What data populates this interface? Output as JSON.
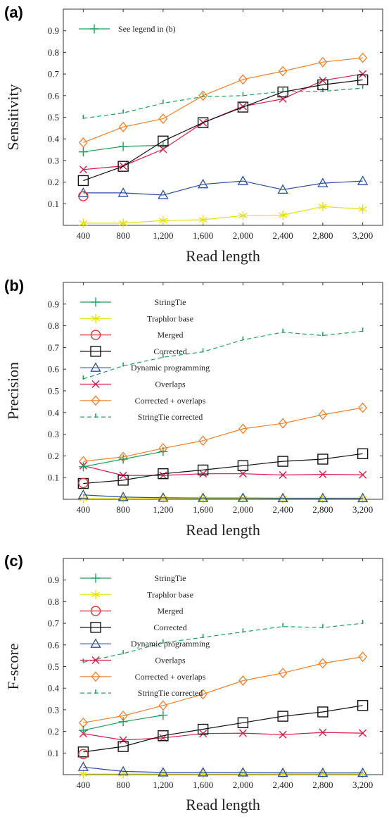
{
  "chart_data": [
    {
      "type": "line",
      "panel": "(a)",
      "xlabel": "Read length",
      "ylabel": "Sensitivity",
      "xlim": [
        200,
        3400
      ],
      "ylim": [
        0,
        1.0
      ],
      "x_ticks": [
        "400",
        "800",
        "1,200",
        "1,600",
        "2,000",
        "2,400",
        "2,800",
        "3,200"
      ],
      "y_ticks": [
        "0.1",
        "0.2",
        "0.3",
        "0.4",
        "0.5",
        "0.6",
        "0.7",
        "0.8",
        "0.9"
      ],
      "legend": [
        {
          "key": "stringtie",
          "label": "See legend in (b)"
        }
      ],
      "series": [
        {
          "key": "stringtie",
          "x": [
            400,
            800,
            1200
          ],
          "y": [
            0.34,
            0.365,
            0.37
          ]
        },
        {
          "key": "traphlor",
          "x": [
            400,
            800,
            1200,
            1600,
            2000,
            2400,
            2800,
            3200
          ],
          "y": [
            0.01,
            0.01,
            0.022,
            0.026,
            0.045,
            0.047,
            0.087,
            0.075
          ]
        },
        {
          "key": "merged",
          "x": [
            400
          ],
          "y": [
            0.135
          ]
        },
        {
          "key": "corrected",
          "x": [
            400,
            800,
            1200,
            1600,
            2000,
            2400,
            2800,
            3200
          ],
          "y": [
            0.207,
            0.273,
            0.39,
            0.475,
            0.547,
            0.617,
            0.65,
            0.673
          ]
        },
        {
          "key": "dynamic",
          "x": [
            400,
            800,
            1200,
            1600,
            2000,
            2400,
            2800,
            3200
          ],
          "y": [
            0.15,
            0.15,
            0.14,
            0.19,
            0.205,
            0.165,
            0.195,
            0.205
          ]
        },
        {
          "key": "overlaps",
          "x": [
            400,
            800,
            1200,
            1600,
            2000,
            2400,
            2800,
            3200
          ],
          "y": [
            0.258,
            0.275,
            0.352,
            0.475,
            0.55,
            0.585,
            0.67,
            0.7
          ]
        },
        {
          "key": "corr_overlaps",
          "x": [
            400,
            800,
            1200,
            1600,
            2000,
            2400,
            2800,
            3200
          ],
          "y": [
            0.383,
            0.455,
            0.493,
            0.6,
            0.675,
            0.713,
            0.755,
            0.775
          ]
        },
        {
          "key": "st_corrected",
          "x": [
            400,
            800,
            1200,
            1600,
            2000,
            2400,
            2800,
            3200
          ],
          "y": [
            0.495,
            0.52,
            0.565,
            0.595,
            0.6,
            0.62,
            0.62,
            0.635
          ]
        }
      ]
    },
    {
      "type": "line",
      "panel": "(b)",
      "xlabel": "Read length",
      "ylabel": "Precision",
      "xlim": [
        200,
        3400
      ],
      "ylim": [
        0,
        1.0
      ],
      "x_ticks": [
        "400",
        "800",
        "1,200",
        "1,600",
        "2,000",
        "2,400",
        "2,800",
        "3,200"
      ],
      "y_ticks": [
        "0.1",
        "0.2",
        "0.3",
        "0.4",
        "0.5",
        "0.6",
        "0.7",
        "0.8",
        "0.9"
      ],
      "legend": [
        {
          "key": "stringtie",
          "label": "StringTie"
        },
        {
          "key": "traphlor",
          "label": "Traphlor base"
        },
        {
          "key": "merged",
          "label": "Merged"
        },
        {
          "key": "corrected",
          "label": "Corrected"
        },
        {
          "key": "dynamic",
          "label": "Dynamic programming"
        },
        {
          "key": "overlaps",
          "label": "Overlaps"
        },
        {
          "key": "corr_overlaps",
          "label": "Corrected + overlaps"
        },
        {
          "key": "st_corrected",
          "label": "StringTie corrected"
        }
      ],
      "series": [
        {
          "key": "stringtie",
          "x": [
            400,
            800,
            1200
          ],
          "y": [
            0.15,
            0.185,
            0.22
          ]
        },
        {
          "key": "traphlor",
          "x": [
            400,
            800,
            1200,
            1600,
            2000,
            2400,
            2800,
            3200
          ],
          "y": [
            0.003,
            0.003,
            0.003,
            0.003,
            0.003,
            0.003,
            0.003,
            0.003
          ]
        },
        {
          "key": "merged",
          "x": [
            400
          ],
          "y": [
            0.075
          ]
        },
        {
          "key": "corrected",
          "x": [
            400,
            800,
            1200,
            1600,
            2000,
            2400,
            2800,
            3200
          ],
          "y": [
            0.073,
            0.088,
            0.118,
            0.135,
            0.155,
            0.175,
            0.185,
            0.21
          ]
        },
        {
          "key": "dynamic",
          "x": [
            400,
            800,
            1200,
            1600,
            2000,
            2400,
            2800,
            3200
          ],
          "y": [
            0.02,
            0.01,
            0.007,
            0.006,
            0.006,
            0.005,
            0.005,
            0.005
          ]
        },
        {
          "key": "overlaps",
          "x": [
            400,
            800,
            1200,
            1600,
            2000,
            2400,
            2800,
            3200
          ],
          "y": [
            0.155,
            0.11,
            0.11,
            0.118,
            0.118,
            0.112,
            0.115,
            0.113
          ]
        },
        {
          "key": "corr_overlaps",
          "x": [
            400,
            800,
            1200,
            1600,
            2000,
            2400,
            2800,
            3200
          ],
          "y": [
            0.175,
            0.195,
            0.235,
            0.27,
            0.325,
            0.35,
            0.39,
            0.422
          ]
        },
        {
          "key": "st_corrected",
          "x": [
            400,
            800,
            1200,
            1600,
            2000,
            2400,
            2800,
            3200
          ],
          "y": [
            0.555,
            0.615,
            0.655,
            0.68,
            0.735,
            0.77,
            0.755,
            0.775
          ]
        }
      ]
    },
    {
      "type": "line",
      "panel": "(c)",
      "xlabel": "Read length",
      "ylabel": "F-score",
      "xlim": [
        200,
        3400
      ],
      "ylim": [
        0,
        1.0
      ],
      "x_ticks": [
        "400",
        "800",
        "1,200",
        "1,600",
        "2,000",
        "2,400",
        "2,800",
        "3,200"
      ],
      "y_ticks": [
        "0.1",
        "0.2",
        "0.3",
        "0.4",
        "0.5",
        "0.6",
        "0.7",
        "0.8",
        "0.9"
      ],
      "legend": [
        {
          "key": "stringtie",
          "label": "StringTie"
        },
        {
          "key": "traphlor",
          "label": "Traphlor base"
        },
        {
          "key": "merged",
          "label": "Merged"
        },
        {
          "key": "corrected",
          "label": "Corrected"
        },
        {
          "key": "dynamic",
          "label": "Dynamic programming"
        },
        {
          "key": "overlaps",
          "label": "Overlaps"
        },
        {
          "key": "corr_overlaps",
          "label": "Corrected + overlaps"
        },
        {
          "key": "st_corrected",
          "label": "StringTie corrected"
        }
      ],
      "series": [
        {
          "key": "stringtie",
          "x": [
            400,
            800,
            1200
          ],
          "y": [
            0.205,
            0.245,
            0.275
          ]
        },
        {
          "key": "traphlor",
          "x": [
            400,
            800,
            1200,
            1600,
            2000,
            2400,
            2800,
            3200
          ],
          "y": [
            0.003,
            0.003,
            0.003,
            0.003,
            0.003,
            0.003,
            0.003,
            0.003
          ]
        },
        {
          "key": "merged",
          "x": [
            400
          ],
          "y": [
            0.095
          ]
        },
        {
          "key": "corrected",
          "x": [
            400,
            800,
            1200,
            1600,
            2000,
            2400,
            2800,
            3200
          ],
          "y": [
            0.105,
            0.13,
            0.18,
            0.21,
            0.24,
            0.27,
            0.29,
            0.32
          ]
        },
        {
          "key": "dynamic",
          "x": [
            400,
            800,
            1200,
            1600,
            2000,
            2400,
            2800,
            3200
          ],
          "y": [
            0.035,
            0.015,
            0.01,
            0.01,
            0.01,
            0.008,
            0.008,
            0.008
          ]
        },
        {
          "key": "overlaps",
          "x": [
            400,
            800,
            1200,
            1600,
            2000,
            2400,
            2800,
            3200
          ],
          "y": [
            0.19,
            0.16,
            0.17,
            0.19,
            0.192,
            0.185,
            0.195,
            0.192
          ]
        },
        {
          "key": "corr_overlaps",
          "x": [
            400,
            800,
            1200,
            1600,
            2000,
            2400,
            2800,
            3200
          ],
          "y": [
            0.24,
            0.272,
            0.32,
            0.372,
            0.435,
            0.47,
            0.515,
            0.545
          ]
        },
        {
          "key": "st_corrected",
          "x": [
            400,
            800,
            1200,
            1600,
            2000,
            2400,
            2800,
            3200
          ],
          "y": [
            0.52,
            0.56,
            0.61,
            0.635,
            0.66,
            0.685,
            0.68,
            0.7
          ]
        }
      ]
    }
  ],
  "series_styles": {
    "stringtie": {
      "color": "#1fa05a",
      "marker": "plus",
      "dash": "solid"
    },
    "traphlor": {
      "color": "#e8e000",
      "marker": "star",
      "dash": "solid"
    },
    "merged": {
      "color": "#e0303a",
      "marker": "circle",
      "dash": "solid"
    },
    "corrected": {
      "color": "#111111",
      "marker": "square",
      "dash": "solid"
    },
    "dynamic": {
      "color": "#2b4fa0",
      "marker": "triangle",
      "dash": "solid"
    },
    "overlaps": {
      "color": "#d81b48",
      "marker": "x",
      "dash": "solid"
    },
    "corr_overlaps": {
      "color": "#f0802a",
      "marker": "diamond",
      "dash": "solid"
    },
    "st_corrected": {
      "color": "#1fa05a",
      "marker": "tick",
      "dash": "dashed"
    }
  }
}
